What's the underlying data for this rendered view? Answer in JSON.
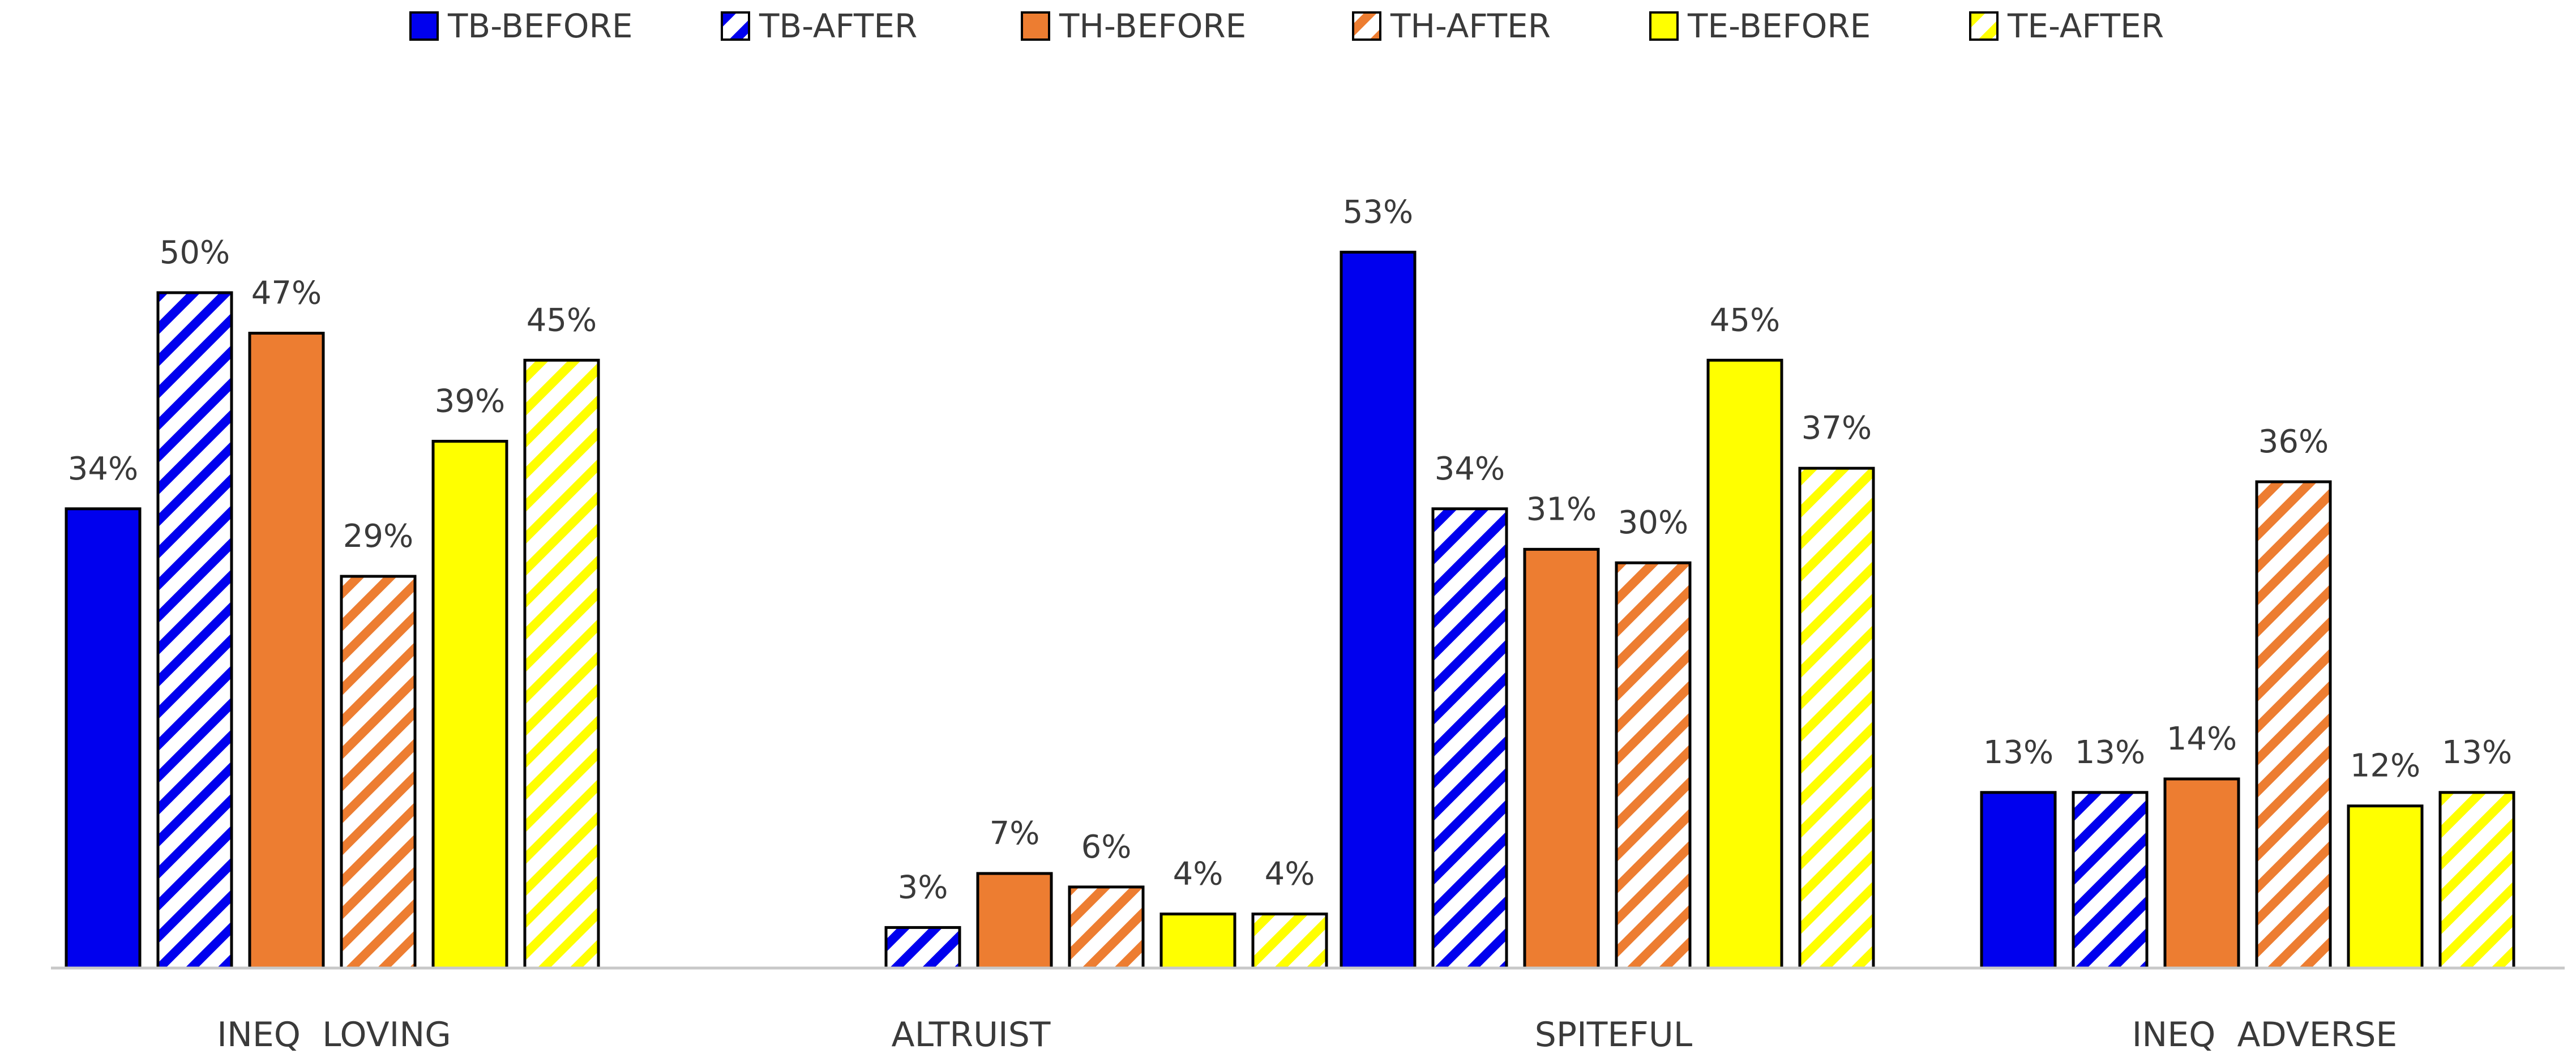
{
  "chart_data": {
    "type": "bar",
    "categories": [
      "INEQ  LOVING",
      "ALTRUIST",
      "SPITEFUL",
      "INEQ  ADVERSE"
    ],
    "series": [
      {
        "name": "TB-BEFORE",
        "color": "#0000ee",
        "pattern": "solid",
        "values": [
          34,
          null,
          53,
          13
        ]
      },
      {
        "name": "TB-AFTER",
        "color": "#0000ee",
        "pattern": "hatched",
        "values": [
          50,
          3,
          34,
          13
        ]
      },
      {
        "name": "TH-BEFORE",
        "color": "#ed7d31",
        "pattern": "solid",
        "values": [
          47,
          7,
          31,
          14
        ]
      },
      {
        "name": "TH-AFTER",
        "color": "#ed7d31",
        "pattern": "hatched",
        "values": [
          29,
          6,
          30,
          36
        ]
      },
      {
        "name": "TE-BEFORE",
        "color": "#ffff00",
        "pattern": "solid",
        "values": [
          39,
          4,
          45,
          12
        ]
      },
      {
        "name": "TE-AFTER",
        "color": "#ffff00",
        "pattern": "hatched",
        "values": [
          45,
          4,
          37,
          13
        ]
      }
    ],
    "value_suffix": "%",
    "ylim": [
      0,
      60
    ],
    "grid": false,
    "legend": "top",
    "data_labels": true
  }
}
